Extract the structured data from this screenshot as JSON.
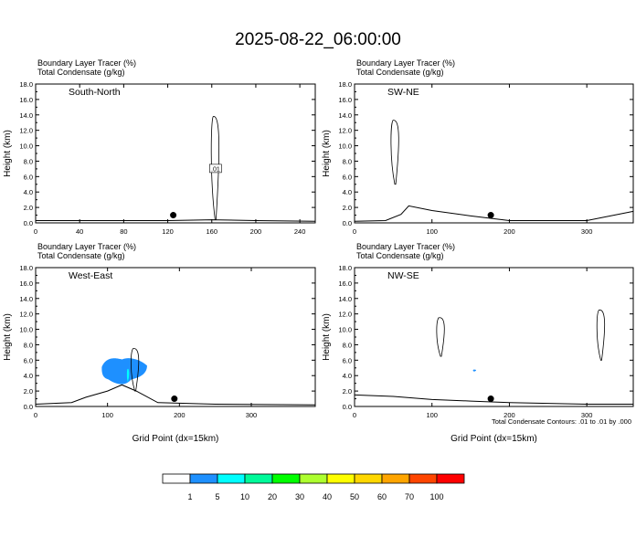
{
  "title": "2025-08-22_06:00:00",
  "panels": [
    {
      "id": "south-north",
      "label": "South-North",
      "line1": "Boundary Layer Tracer   (%)",
      "line2": "Total Condensate   (g/kg)",
      "xmax": 254,
      "xticks": [
        0,
        40,
        80,
        120,
        160,
        200,
        240
      ],
      "xlabel": ""
    },
    {
      "id": "sw-ne",
      "label": "SW-NE",
      "line1": "Boundary Layer Tracer   (%)",
      "line2": "Total Condensate   (g/kg)",
      "xmax": 360,
      "xticks": [
        0,
        100,
        200,
        300
      ],
      "xlabel": ""
    },
    {
      "id": "west-east",
      "label": "West-East",
      "line1": "Boundary Layer Tracer   (%)",
      "line2": "Total Condensate   (g/kg)",
      "xmax": 389,
      "xticks": [
        0,
        100,
        200,
        300
      ],
      "xlabel": "Grid Point (dx=15km)"
    },
    {
      "id": "nw-se",
      "label": "NW-SE",
      "line1": "Boundary Layer Tracer   (%)",
      "line2": "Total Condensate   (g/kg)",
      "xmax": 360,
      "xticks": [
        0,
        100,
        200,
        300
      ],
      "xlabel": "Grid Point (dx=15km)"
    }
  ],
  "ylabel": "Height (km)",
  "yticks": [
    "0.0",
    "2.0",
    "4.0",
    "6.0",
    "8.0",
    "10.0",
    "12.0",
    "14.0",
    "16.0",
    "18.0"
  ],
  "contour_label": ".01",
  "contour_note": "Total Condensate Contours: .01 to .01 by .000",
  "legend": {
    "labels": [
      "1",
      "5",
      "10",
      "20",
      "30",
      "40",
      "50",
      "60",
      "70",
      "100"
    ],
    "colors": [
      "#ffffff",
      "#1e90ff",
      "#00ffff",
      "#00fa9a",
      "#00ff00",
      "#adff2f",
      "#ffff00",
      "#ffd700",
      "#ffa500",
      "#ff4500",
      "#ff0000"
    ]
  },
  "chart_data": [
    {
      "type": "contour",
      "panel": "South-North",
      "xlim": [
        0,
        254
      ],
      "ylim": [
        0,
        18
      ],
      "terrain": [
        [
          0,
          0.3
        ],
        [
          40,
          0.3
        ],
        [
          80,
          0.3
        ],
        [
          120,
          0.3
        ],
        [
          160,
          0.4
        ],
        [
          200,
          0.3
        ],
        [
          254,
          0.2
        ]
      ],
      "marker": [
        125,
        1.0
      ],
      "condensate_contours": [
        {
          "center": [
            163,
            7
          ],
          "top": 13.8,
          "bottom": 0.4
        }
      ],
      "tracer_fill": []
    },
    {
      "type": "contour",
      "panel": "SW-NE",
      "xlim": [
        0,
        360
      ],
      "ylim": [
        0,
        18
      ],
      "terrain": [
        [
          0,
          0.2
        ],
        [
          40,
          0.3
        ],
        [
          60,
          1.1
        ],
        [
          70,
          2.2
        ],
        [
          100,
          1.6
        ],
        [
          150,
          0.9
        ],
        [
          200,
          0.3
        ],
        [
          300,
          0.3
        ],
        [
          360,
          1.5
        ]
      ],
      "marker": [
        176,
        1.0
      ],
      "condensate_contours": [
        {
          "center": [
            52,
            9
          ],
          "top": 13.3,
          "bottom": 5.0
        }
      ],
      "tracer_fill": []
    },
    {
      "type": "contour",
      "panel": "West-East",
      "xlim": [
        0,
        389
      ],
      "ylim": [
        0,
        18
      ],
      "terrain": [
        [
          0,
          0.3
        ],
        [
          50,
          0.5
        ],
        [
          70,
          1.2
        ],
        [
          100,
          2.0
        ],
        [
          120,
          2.8
        ],
        [
          140,
          2.0
        ],
        [
          170,
          0.5
        ],
        [
          250,
          0.3
        ],
        [
          389,
          0.2
        ]
      ],
      "marker": [
        193,
        1.0
      ],
      "condensate_contours": [
        {
          "center": [
            138,
            5
          ],
          "top": 7.5,
          "bottom": 2.0
        }
      ],
      "tracer_fill": [
        {
          "range": "1-5",
          "x": [
            92,
            155
          ],
          "y": [
            2.5,
            6.5
          ]
        },
        {
          "range": "5-10",
          "x": [
            127,
            130
          ],
          "y": [
            3,
            5
          ]
        }
      ]
    },
    {
      "type": "contour",
      "panel": "NW-SE",
      "xlim": [
        0,
        360
      ],
      "ylim": [
        0,
        18
      ],
      "terrain": [
        [
          0,
          1.5
        ],
        [
          50,
          1.3
        ],
        [
          100,
          0.9
        ],
        [
          150,
          0.7
        ],
        [
          200,
          0.5
        ],
        [
          300,
          0.3
        ],
        [
          360,
          0.3
        ]
      ],
      "marker": [
        176,
        1.0
      ],
      "condensate_contours": [
        {
          "center": [
            111,
            8.8
          ],
          "top": 11.5,
          "bottom": 6.5
        },
        {
          "center": [
            318,
            9.5
          ],
          "top": 12.5,
          "bottom": 6.0
        }
      ],
      "tracer_fill": [
        {
          "range": "1-5",
          "x": [
            153,
            157
          ],
          "y": [
            4.5,
            4.8
          ]
        }
      ]
    }
  ]
}
